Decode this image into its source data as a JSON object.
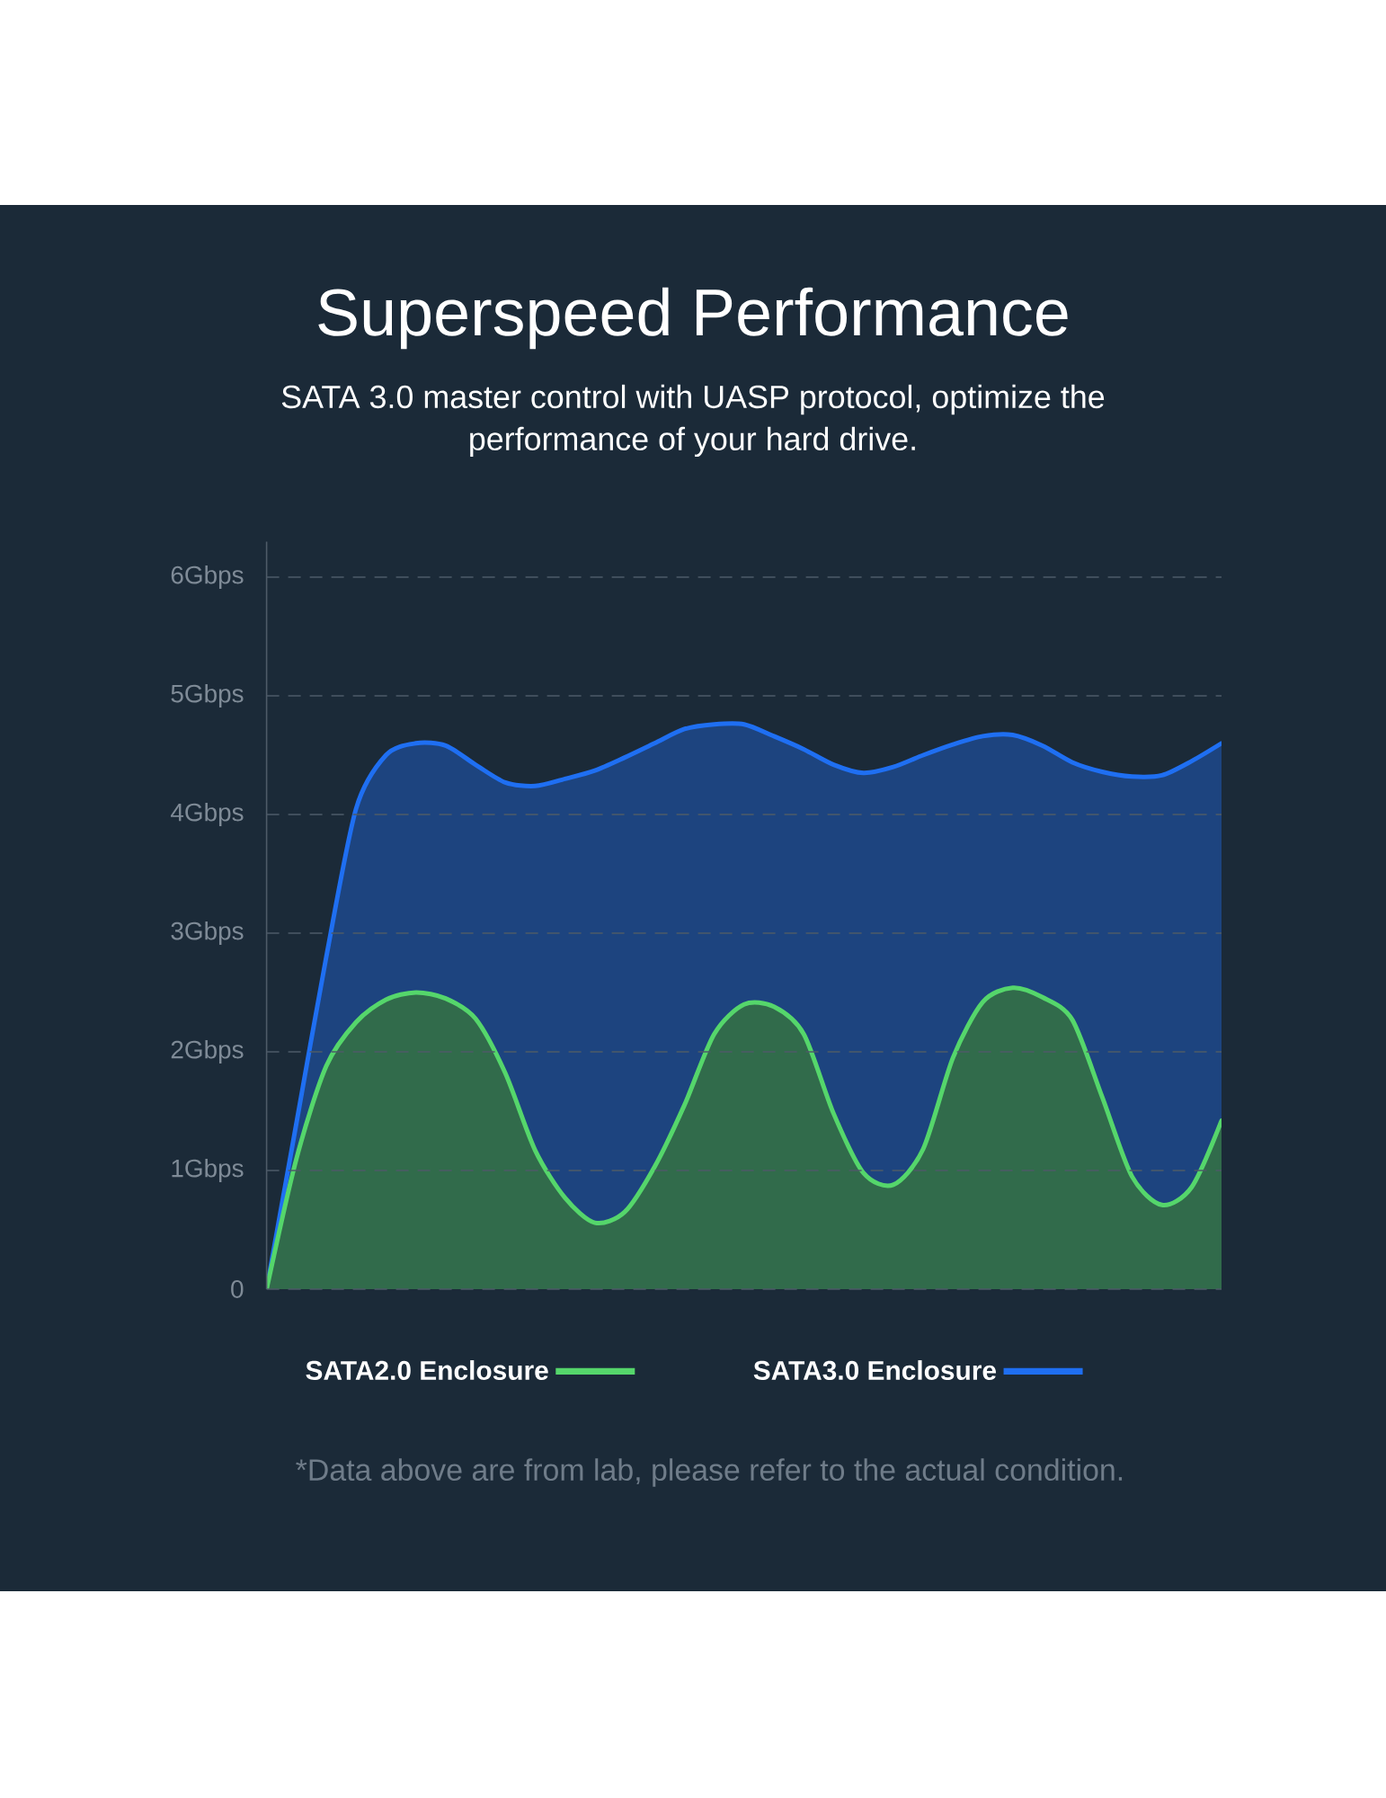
{
  "chart_data": {
    "type": "area",
    "title": "Superspeed Performance",
    "subtitle": "SATA 3.0 master control with UASP protocol, optimize the performance of your hard drive.",
    "categories": [
      null,
      null,
      null,
      null,
      null,
      null,
      null,
      null,
      null,
      null,
      null,
      null,
      null,
      null,
      null,
      null,
      null,
      null,
      null,
      null,
      null,
      null,
      null,
      null,
      null,
      null,
      null,
      null,
      null,
      null,
      null,
      null,
      null
    ],
    "series": [
      {
        "name": "SATA2.0 Enclosure",
        "color": "#55d66b",
        "values": [
          0,
          1.1,
          1.88,
          2.25,
          2.44,
          2.5,
          2.45,
          2.28,
          1.82,
          1.17,
          0.77,
          0.56,
          0.65,
          1.03,
          1.55,
          2.15,
          2.4,
          2.38,
          2.15,
          1.48,
          0.98,
          0.88,
          1.18,
          1.95,
          2.42,
          2.54,
          2.46,
          2.27,
          1.62,
          0.95,
          0.71,
          0.86,
          1.42
        ]
      },
      {
        "name": "SATA3.0 Enclosure",
        "color": "#1f6ff2",
        "values": [
          0,
          1.4,
          2.8,
          4.05,
          4.5,
          4.6,
          4.58,
          4.42,
          4.27,
          4.24,
          4.3,
          4.37,
          4.48,
          4.6,
          4.72,
          4.76,
          4.76,
          4.66,
          4.55,
          4.42,
          4.35,
          4.4,
          4.5,
          4.59,
          4.66,
          4.67,
          4.58,
          4.44,
          4.36,
          4.32,
          4.33,
          4.45,
          4.6
        ]
      }
    ],
    "ylim": [
      0,
      6.3
    ],
    "yticks": [
      0,
      {
        "value": 1,
        "label": "1Gbps"
      },
      {
        "value": 2,
        "label": "2Gbps"
      },
      {
        "value": 3,
        "label": "3Gbps"
      },
      {
        "value": 4,
        "label": "4Gbps"
      },
      {
        "value": 5,
        "label": "5Gbps"
      },
      {
        "value": 6,
        "label": "6Gbps"
      }
    ],
    "grid": "y",
    "legend": "bottom",
    "annotations": [
      "*Data above are from lab, please refer to the actual condition."
    ]
  }
}
